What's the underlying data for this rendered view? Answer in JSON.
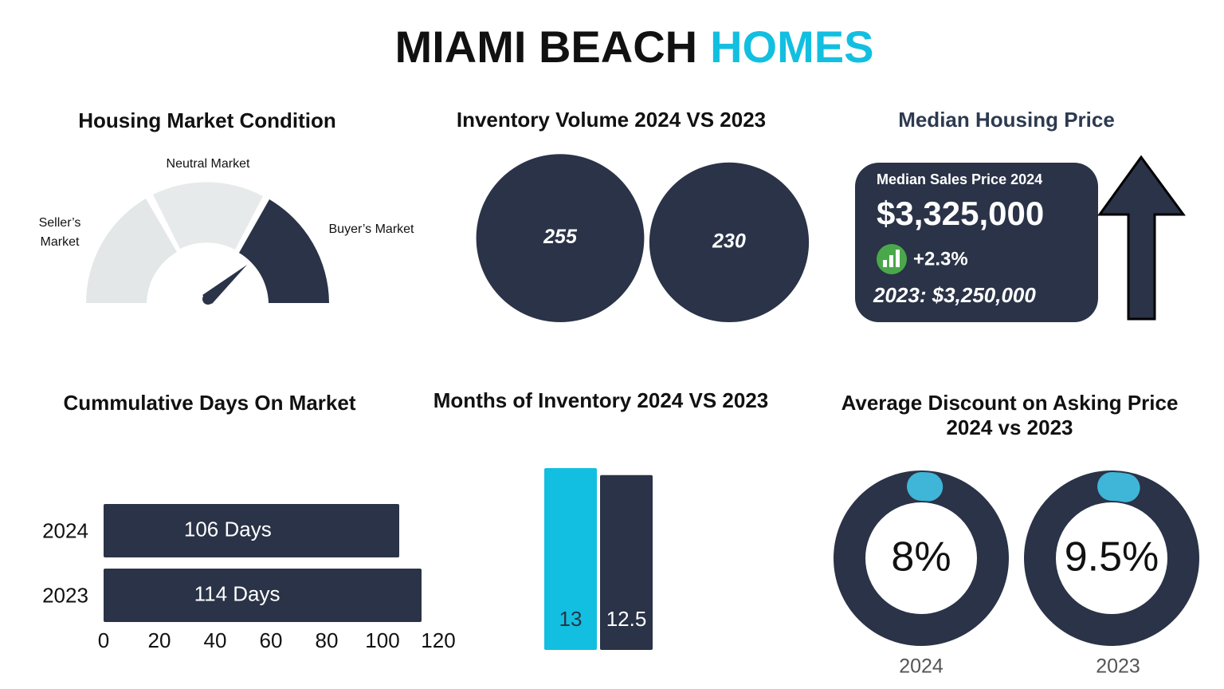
{
  "header": {
    "title_main": "MIAMI BEACH",
    "title_accent": "HOMES"
  },
  "gauge": {
    "title": "Housing Market Condition",
    "labels": [
      "Seller’s Market",
      "Neutral Market",
      "Buyer’s Market"
    ]
  },
  "price_card": {
    "title": "Median Housing Price",
    "label": "Median Sales Price 2024",
    "price": "$3,325,000",
    "change": "+2.3%",
    "previous": "2023: $3,250,000"
  },
  "chart_data": [
    {
      "type": "bubble",
      "title": "Inventory Volume 2024 VS 2023",
      "values": [
        255,
        230
      ],
      "color": "#2a3347"
    },
    {
      "type": "hbar",
      "title": "Cummulative Days On Market",
      "categories": [
        "2024",
        "2023"
      ],
      "values": [
        106,
        114
      ],
      "value_labels": [
        "106 Days",
        "114 Days"
      ],
      "color": "#2a3347",
      "xlim": [
        0,
        120
      ],
      "xticks": [
        0,
        20,
        40,
        60,
        80,
        100,
        120
      ]
    },
    {
      "type": "bar",
      "title": "Months of Inventory 2024 VS 2023",
      "values": [
        13,
        12.5
      ],
      "colors": [
        "#12bfe0",
        "#2a3347"
      ]
    },
    {
      "type": "donut",
      "title": "Average Discount on Asking Price 2024 vs 2023",
      "categories": [
        "2024",
        "2023"
      ],
      "values": [
        8,
        9.5
      ],
      "value_labels": [
        "8%",
        "9.5%"
      ],
      "color": "#2a3347",
      "accent": "#3fb5d8"
    }
  ]
}
